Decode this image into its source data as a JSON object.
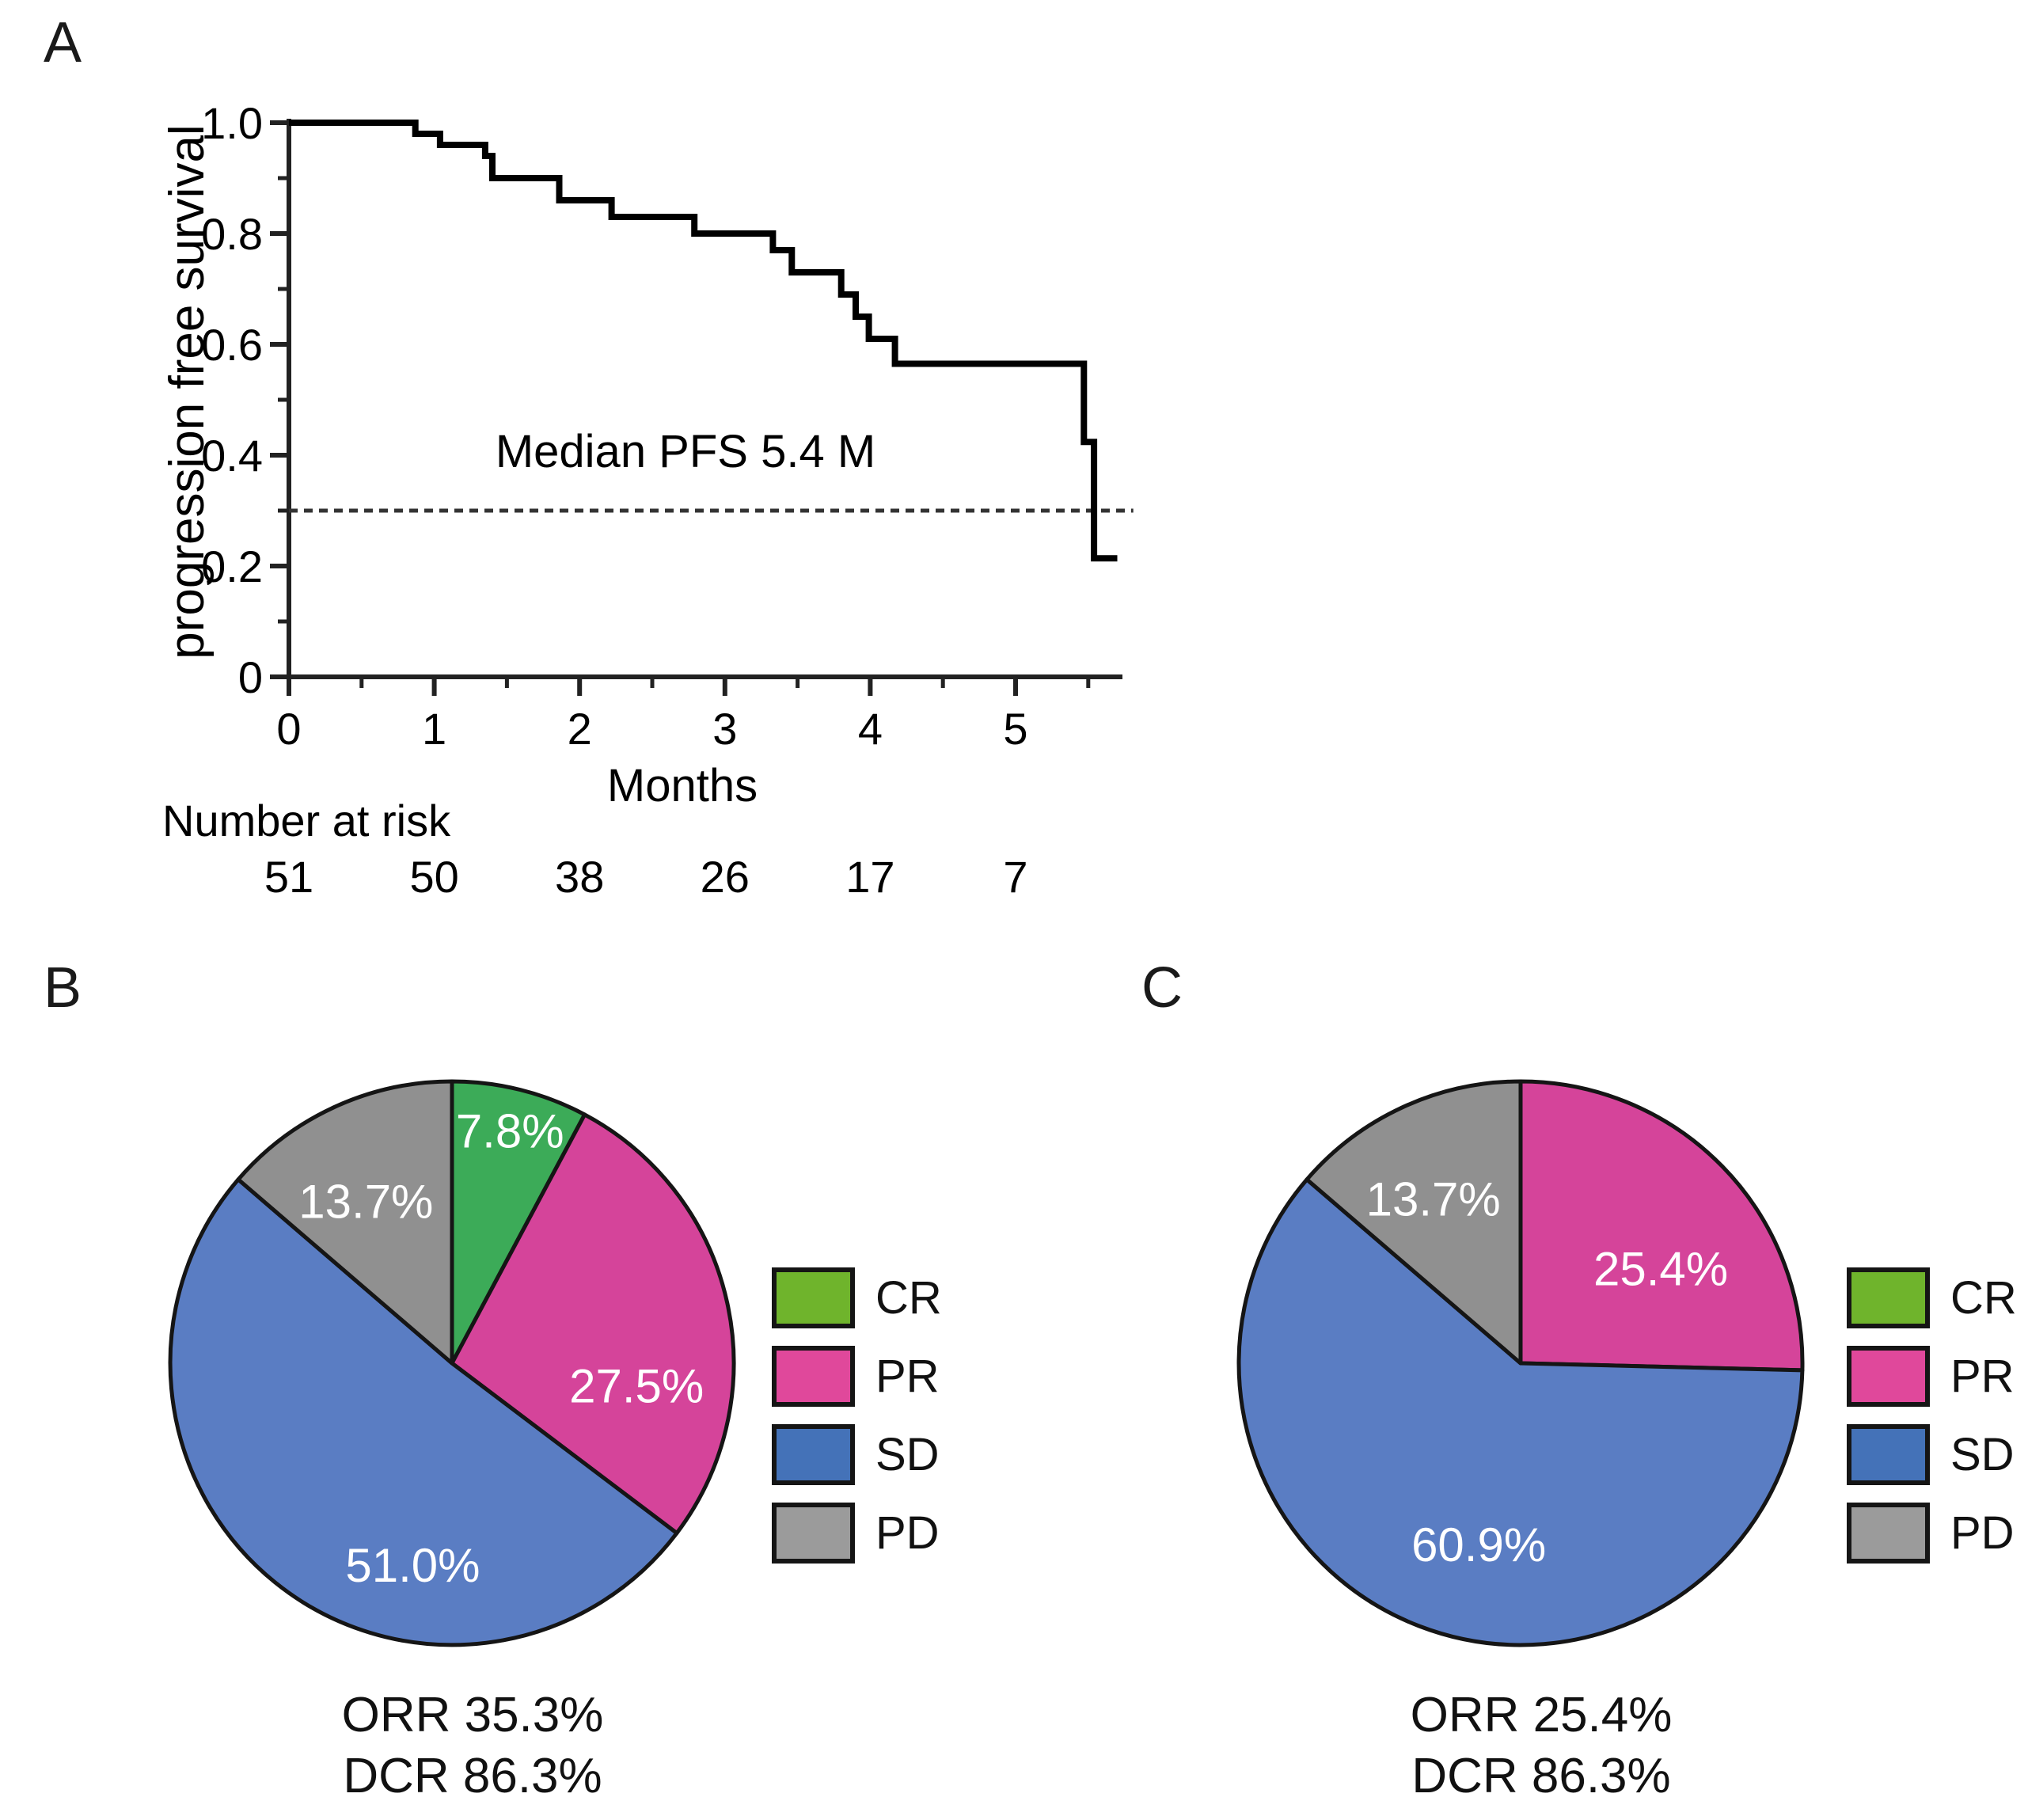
{
  "panel_labels": {
    "a": "A",
    "b": "B",
    "c": "C"
  },
  "legend": {
    "items": [
      {
        "label": "CR",
        "color": "#6fb42c"
      },
      {
        "label": "PR",
        "color": "#e0489b"
      },
      {
        "label": "SD",
        "color": "#4472b8"
      },
      {
        "label": "PD",
        "color": "#9b9b9b"
      }
    ]
  },
  "chart_data": [
    {
      "type": "line",
      "subtype": "kaplan-meier-step",
      "panel": "A",
      "ylabel": "progression free survival",
      "xlabel": "Months",
      "annotation": "Median PFS 5.4 M",
      "median_pfs_months": 5.4,
      "xlim": [
        0,
        5.75
      ],
      "ylim": [
        0,
        1.0
      ],
      "x_ticks": [
        "0",
        "1",
        "2",
        "3",
        "4",
        "5"
      ],
      "x_minor_ticks": [
        0.5,
        1.5,
        2.5,
        3.5,
        4.5,
        5.5
      ],
      "y_ticks": [
        1.0,
        0.8,
        0.6,
        0.4,
        0.2,
        0
      ],
      "y_tick_labels": [
        "1.0",
        "0.8",
        "0.6",
        "0.4",
        "0.2",
        "0"
      ],
      "y_minor_ticks": [
        0.9,
        0.7,
        0.5,
        0.3,
        0.1
      ],
      "grid": false,
      "dashed_line_y": 0.3,
      "dashed_line_x_end": 5.81,
      "steps": [
        [
          0,
          1.0
        ],
        [
          0.87,
          0.98
        ],
        [
          1.04,
          0.96
        ],
        [
          1.35,
          0.94
        ],
        [
          1.4,
          0.9
        ],
        [
          1.86,
          0.86
        ],
        [
          2.22,
          0.83
        ],
        [
          2.79,
          0.8
        ],
        [
          3.33,
          0.77
        ],
        [
          3.46,
          0.73
        ],
        [
          3.8,
          0.69
        ],
        [
          3.9,
          0.65
        ],
        [
          3.99,
          0.61
        ],
        [
          4.17,
          0.565
        ],
        [
          5.47,
          0.424
        ],
        [
          5.54,
          0.214
        ]
      ],
      "curve_end_x": 5.7,
      "line_color": "#000000",
      "number_at_risk": {
        "label": "Number at  risk",
        "months": [
          0,
          1,
          2,
          3,
          4,
          5
        ],
        "values": [
          "51",
          "50",
          "38",
          "26",
          "17",
          "7"
        ]
      }
    },
    {
      "type": "pie",
      "panel": "B",
      "legend_position": "right",
      "slices": [
        {
          "label": "CR",
          "value_pct": 7.8,
          "text": "7.8%",
          "color": "#3cab58",
          "label_angle": 14,
          "label_rfrac": 0.85
        },
        {
          "label": "PR",
          "value_pct": 27.5,
          "text": "27.5%",
          "color": "#d5449a",
          "label_angle": 97,
          "label_rfrac": 0.66
        },
        {
          "label": "SD",
          "value_pct": 51.0,
          "text": "51.0%",
          "color": "#5a7dc3",
          "label_angle": 191,
          "label_rfrac": 0.73
        },
        {
          "label": "PD",
          "value_pct": 13.7,
          "text": "13.7%",
          "color": "#909090",
          "label_angle": 332,
          "label_rfrac": 0.65
        }
      ],
      "footer": [
        "ORR 35.3%",
        "DCR 86.3%"
      ]
    },
    {
      "type": "pie",
      "panel": "C",
      "legend_position": "right",
      "slices": [
        {
          "label": "PR",
          "value_pct": 25.4,
          "text": "25.4%",
          "color": "#d5449a",
          "label_angle": 56,
          "label_rfrac": 0.6
        },
        {
          "label": "SD",
          "value_pct": 60.9,
          "text": "60.9%",
          "color": "#5a7dc3",
          "label_angle": 193,
          "label_rfrac": 0.66
        },
        {
          "label": "PD",
          "value_pct": 13.7,
          "text": "13.7%",
          "color": "#909090",
          "label_angle": 332,
          "label_rfrac": 0.66
        }
      ],
      "footer": [
        "ORR 25.4%",
        "DCR 86.3%"
      ]
    }
  ]
}
